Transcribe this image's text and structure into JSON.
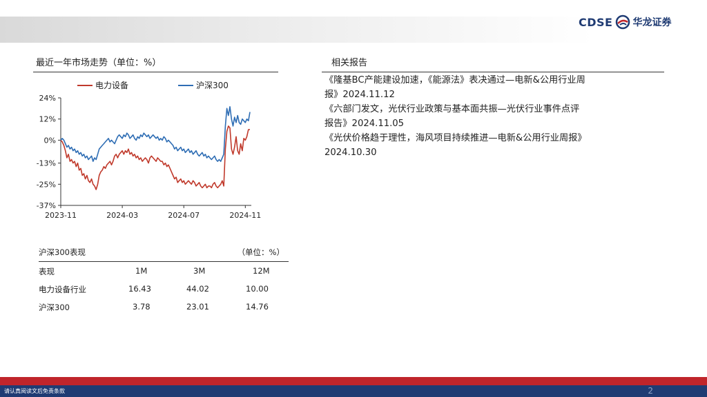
{
  "brand": {
    "logo_text": "CDSE",
    "logo_cn": "华龙证券"
  },
  "left": {
    "chart_title": "最近一年市场走势（单位：%）",
    "perf_title": "沪深300表现",
    "perf_unit": "（单位：%）",
    "perf_headers": [
      "表现",
      "1M",
      "3M",
      "12M"
    ],
    "perf_rows": [
      [
        "电力设备行业",
        "16.43",
        "44.02",
        "10.00"
      ],
      [
        "沪深300",
        "3.78",
        "23.01",
        "14.76"
      ]
    ]
  },
  "right": {
    "title": "相关报告",
    "reports": [
      "《隆基BC产能建设加速，《能源法》表决通过—电新&公用行业周",
      "报》2024.11.12",
      "《六部门发文，光伏行业政策与基本面共振—光伏行业事件点评",
      "报告》2024.11.05",
      "《光伏价格趋于理性，海风项目持续推进—电新&公用行业周报》",
      "2024.10.30"
    ]
  },
  "footer": {
    "disclaimer": "请认真阅读文后免责条款",
    "page": "2"
  },
  "chart_data": {
    "type": "line",
    "title": "",
    "xlabel": "",
    "ylabel": "",
    "legend_position": "top",
    "ylim": [
      -37,
      24
    ],
    "yticks": [
      "24%",
      "12%",
      "0%",
      "-13%",
      "-25%",
      "-37%"
    ],
    "ytick_values": [
      24,
      12,
      0,
      -13,
      -25,
      -37
    ],
    "xticks": [
      "2023-11",
      "2024-03",
      "2024-07",
      "2024-11"
    ],
    "xtick_index": [
      0,
      40,
      80,
      120
    ],
    "colors": {
      "电力设备": "#c0392b",
      "沪深300": "#2e6db4"
    },
    "series": [
      {
        "name": "电力设备",
        "values": [
          0,
          -1,
          -3,
          -6,
          -10,
          -8,
          -12,
          -11,
          -13,
          -12,
          -15,
          -13,
          -17,
          -16,
          -20,
          -19,
          -22,
          -20,
          -23,
          -24,
          -22,
          -25,
          -26,
          -28,
          -25,
          -20,
          -18,
          -17,
          -15,
          -16,
          -14,
          -13,
          -12,
          -14,
          -12,
          -9,
          -8,
          -10,
          -8,
          -7,
          -6,
          -8,
          -6,
          -7,
          -5,
          -8,
          -7,
          -9,
          -8,
          -10,
          -9,
          -11,
          -10,
          -12,
          -11,
          -10,
          -11,
          -13,
          -10,
          -9,
          -10,
          -11,
          -12,
          -10,
          -11,
          -12,
          -12,
          -14,
          -13,
          -15,
          -14,
          -16,
          -18,
          -20,
          -22,
          -21,
          -24,
          -23,
          -22,
          -24,
          -23,
          -25,
          -24,
          -23,
          -24,
          -25,
          -23,
          -24,
          -26,
          -25,
          -24,
          -26,
          -27,
          -26,
          -25,
          -27,
          -26,
          -26,
          -27,
          -25,
          -24,
          -26,
          -27,
          -26,
          -25,
          -23,
          -26,
          -5,
          5,
          8,
          7,
          -5,
          -8,
          -4,
          2,
          -6,
          -8,
          -2,
          -6,
          1,
          0,
          2,
          6,
          6
        ]
      },
      {
        "name": "沪深300",
        "values": [
          0,
          1,
          0,
          -2,
          -4,
          -3,
          -5,
          -4,
          -6,
          -5,
          -7,
          -6,
          -8,
          -7,
          -9,
          -8,
          -10,
          -9,
          -11,
          -10,
          -9,
          -12,
          -10,
          -11,
          -8,
          -5,
          -4,
          -3,
          -2,
          -1,
          0,
          1,
          -1,
          0,
          -1,
          -2,
          0,
          2,
          3,
          2,
          1,
          3,
          2,
          4,
          3,
          1,
          2,
          3,
          1,
          0,
          2,
          1,
          3,
          2,
          4,
          3,
          2,
          3,
          1,
          2,
          3,
          2,
          1,
          2,
          0,
          1,
          0,
          2,
          1,
          -1,
          0,
          -1,
          -2,
          -3,
          -5,
          -4,
          -6,
          -5,
          -4,
          -6,
          -5,
          -7,
          -6,
          -5,
          -7,
          -6,
          -8,
          -7,
          -6,
          -8,
          -9,
          -8,
          -7,
          -9,
          -8,
          -10,
          -9,
          -10,
          -11,
          -10,
          -9,
          -11,
          -12,
          -11,
          -12,
          -10,
          -8,
          8,
          18,
          14,
          19,
          12,
          8,
          13,
          10,
          14,
          10,
          9,
          12,
          11,
          10,
          12,
          11,
          16
        ]
      }
    ]
  }
}
